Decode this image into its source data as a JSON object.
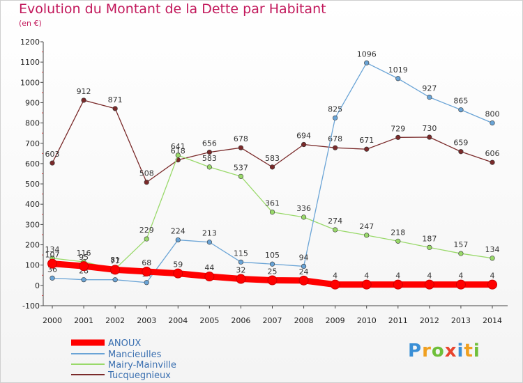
{
  "header": {
    "title": "Evolution du Montant de la Dette par Habitant",
    "unit": "(en €)"
  },
  "logo": {
    "letters": [
      {
        "ch": "P",
        "color": "#3a8fd6"
      },
      {
        "ch": "r",
        "color": "#f0a020"
      },
      {
        "ch": "o",
        "color": "#6fbf3a"
      },
      {
        "ch": "x",
        "color": "#e8442e"
      },
      {
        "ch": "i",
        "color": "#3a8fd6"
      },
      {
        "ch": "t",
        "color": "#f0a020"
      },
      {
        "ch": "i",
        "color": "#6fbf3a"
      }
    ]
  },
  "chart_data": {
    "type": "line",
    "title": "Evolution du Montant de la Dette par Habitant",
    "ylabel": "(en €)",
    "x": [
      "2000",
      "2001",
      "2002",
      "2003",
      "2004",
      "2005",
      "2006",
      "2007",
      "2008",
      "2009",
      "2010",
      "2011",
      "2012",
      "2013",
      "2014"
    ],
    "ylim": [
      -100,
      1200
    ],
    "yticks": [
      -100,
      0,
      100,
      200,
      300,
      400,
      500,
      600,
      700,
      800,
      900,
      1000,
      1100,
      1200
    ],
    "grid": false,
    "legend": "bottom-left",
    "series": [
      {
        "name": "ANOUX",
        "color": "#ff0000",
        "values": [
          107,
          95,
          77,
          68,
          59,
          44,
          32,
          25,
          24,
          4,
          4,
          4,
          4,
          4,
          4
        ]
      },
      {
        "name": "Mancieulles",
        "color": "#6aa4d6",
        "values": [
          36,
          28,
          28,
          14,
          224,
          213,
          115,
          105,
          94,
          825,
          1096,
          1019,
          927,
          865,
          800
        ]
      },
      {
        "name": "Mairy-Mainville",
        "color": "#99d96a",
        "values": [
          134,
          116,
          81,
          229,
          641,
          583,
          537,
          361,
          336,
          274,
          247,
          218,
          187,
          157,
          134
        ]
      },
      {
        "name": "Tucquegnieux",
        "color": "#7a2a2a",
        "values": [
          603,
          912,
          871,
          508,
          618,
          656,
          678,
          583,
          694,
          678,
          671,
          729,
          730,
          659,
          606
        ]
      }
    ]
  }
}
